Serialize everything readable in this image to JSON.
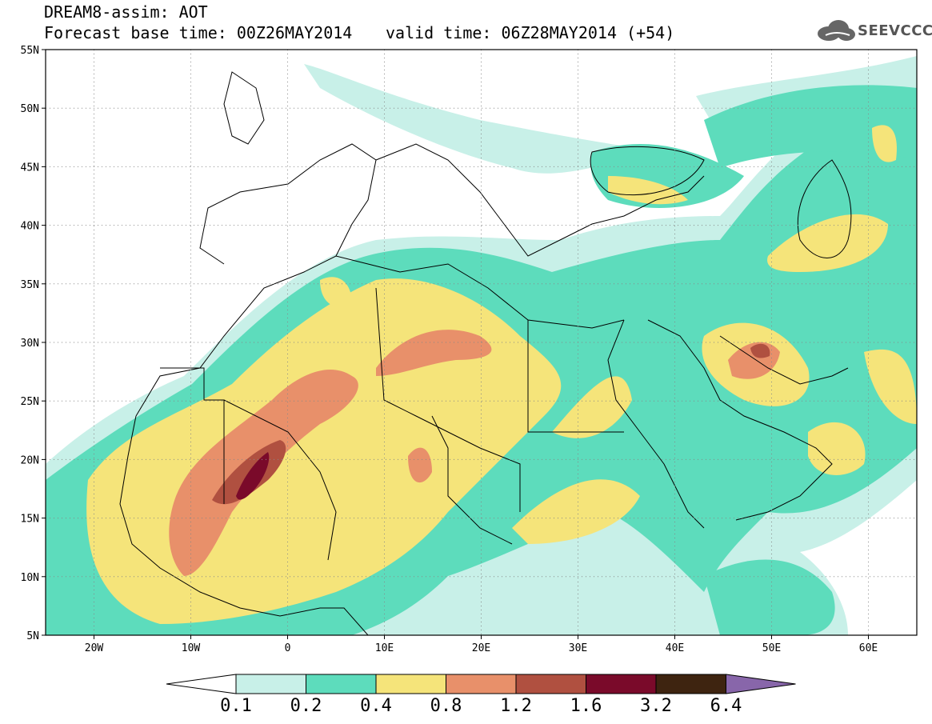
{
  "header": {
    "line1": "DREAM8-assim: AOT",
    "line2_left": "Forecast base time: 00Z26MAY2014",
    "line2_right": "valid time: 06Z28MAY2014 (+54)"
  },
  "logo": {
    "text": "SEEVCCC",
    "icon": "cloud-icon"
  },
  "axes": {
    "lat_labels": [
      "55N",
      "50N",
      "45N",
      "40N",
      "35N",
      "30N",
      "25N",
      "20N",
      "15N",
      "10N",
      "5N"
    ],
    "lat_values": [
      55,
      50,
      45,
      40,
      35,
      30,
      25,
      20,
      15,
      10,
      5
    ],
    "lon_labels": [
      "20W",
      "10W",
      "0",
      "10E",
      "20E",
      "30E",
      "40E",
      "50E",
      "60E"
    ],
    "lon_values": [
      -20,
      -10,
      0,
      10,
      20,
      30,
      40,
      50,
      60
    ],
    "lon_range": [
      -25,
      65
    ],
    "lat_range": [
      5,
      55
    ],
    "grid": "dotted"
  },
  "colorbar": {
    "labels": [
      "0.1",
      "0.2",
      "0.4",
      "0.8",
      "1.2",
      "1.6",
      "3.2",
      "6.4"
    ],
    "colors": [
      "#ffffff",
      "#c8f0e8",
      "#5ddcbc",
      "#f5e47a",
      "#e8906a",
      "#b05040",
      "#7a0a2a",
      "#3e2410",
      "#8866aa"
    ]
  }
}
